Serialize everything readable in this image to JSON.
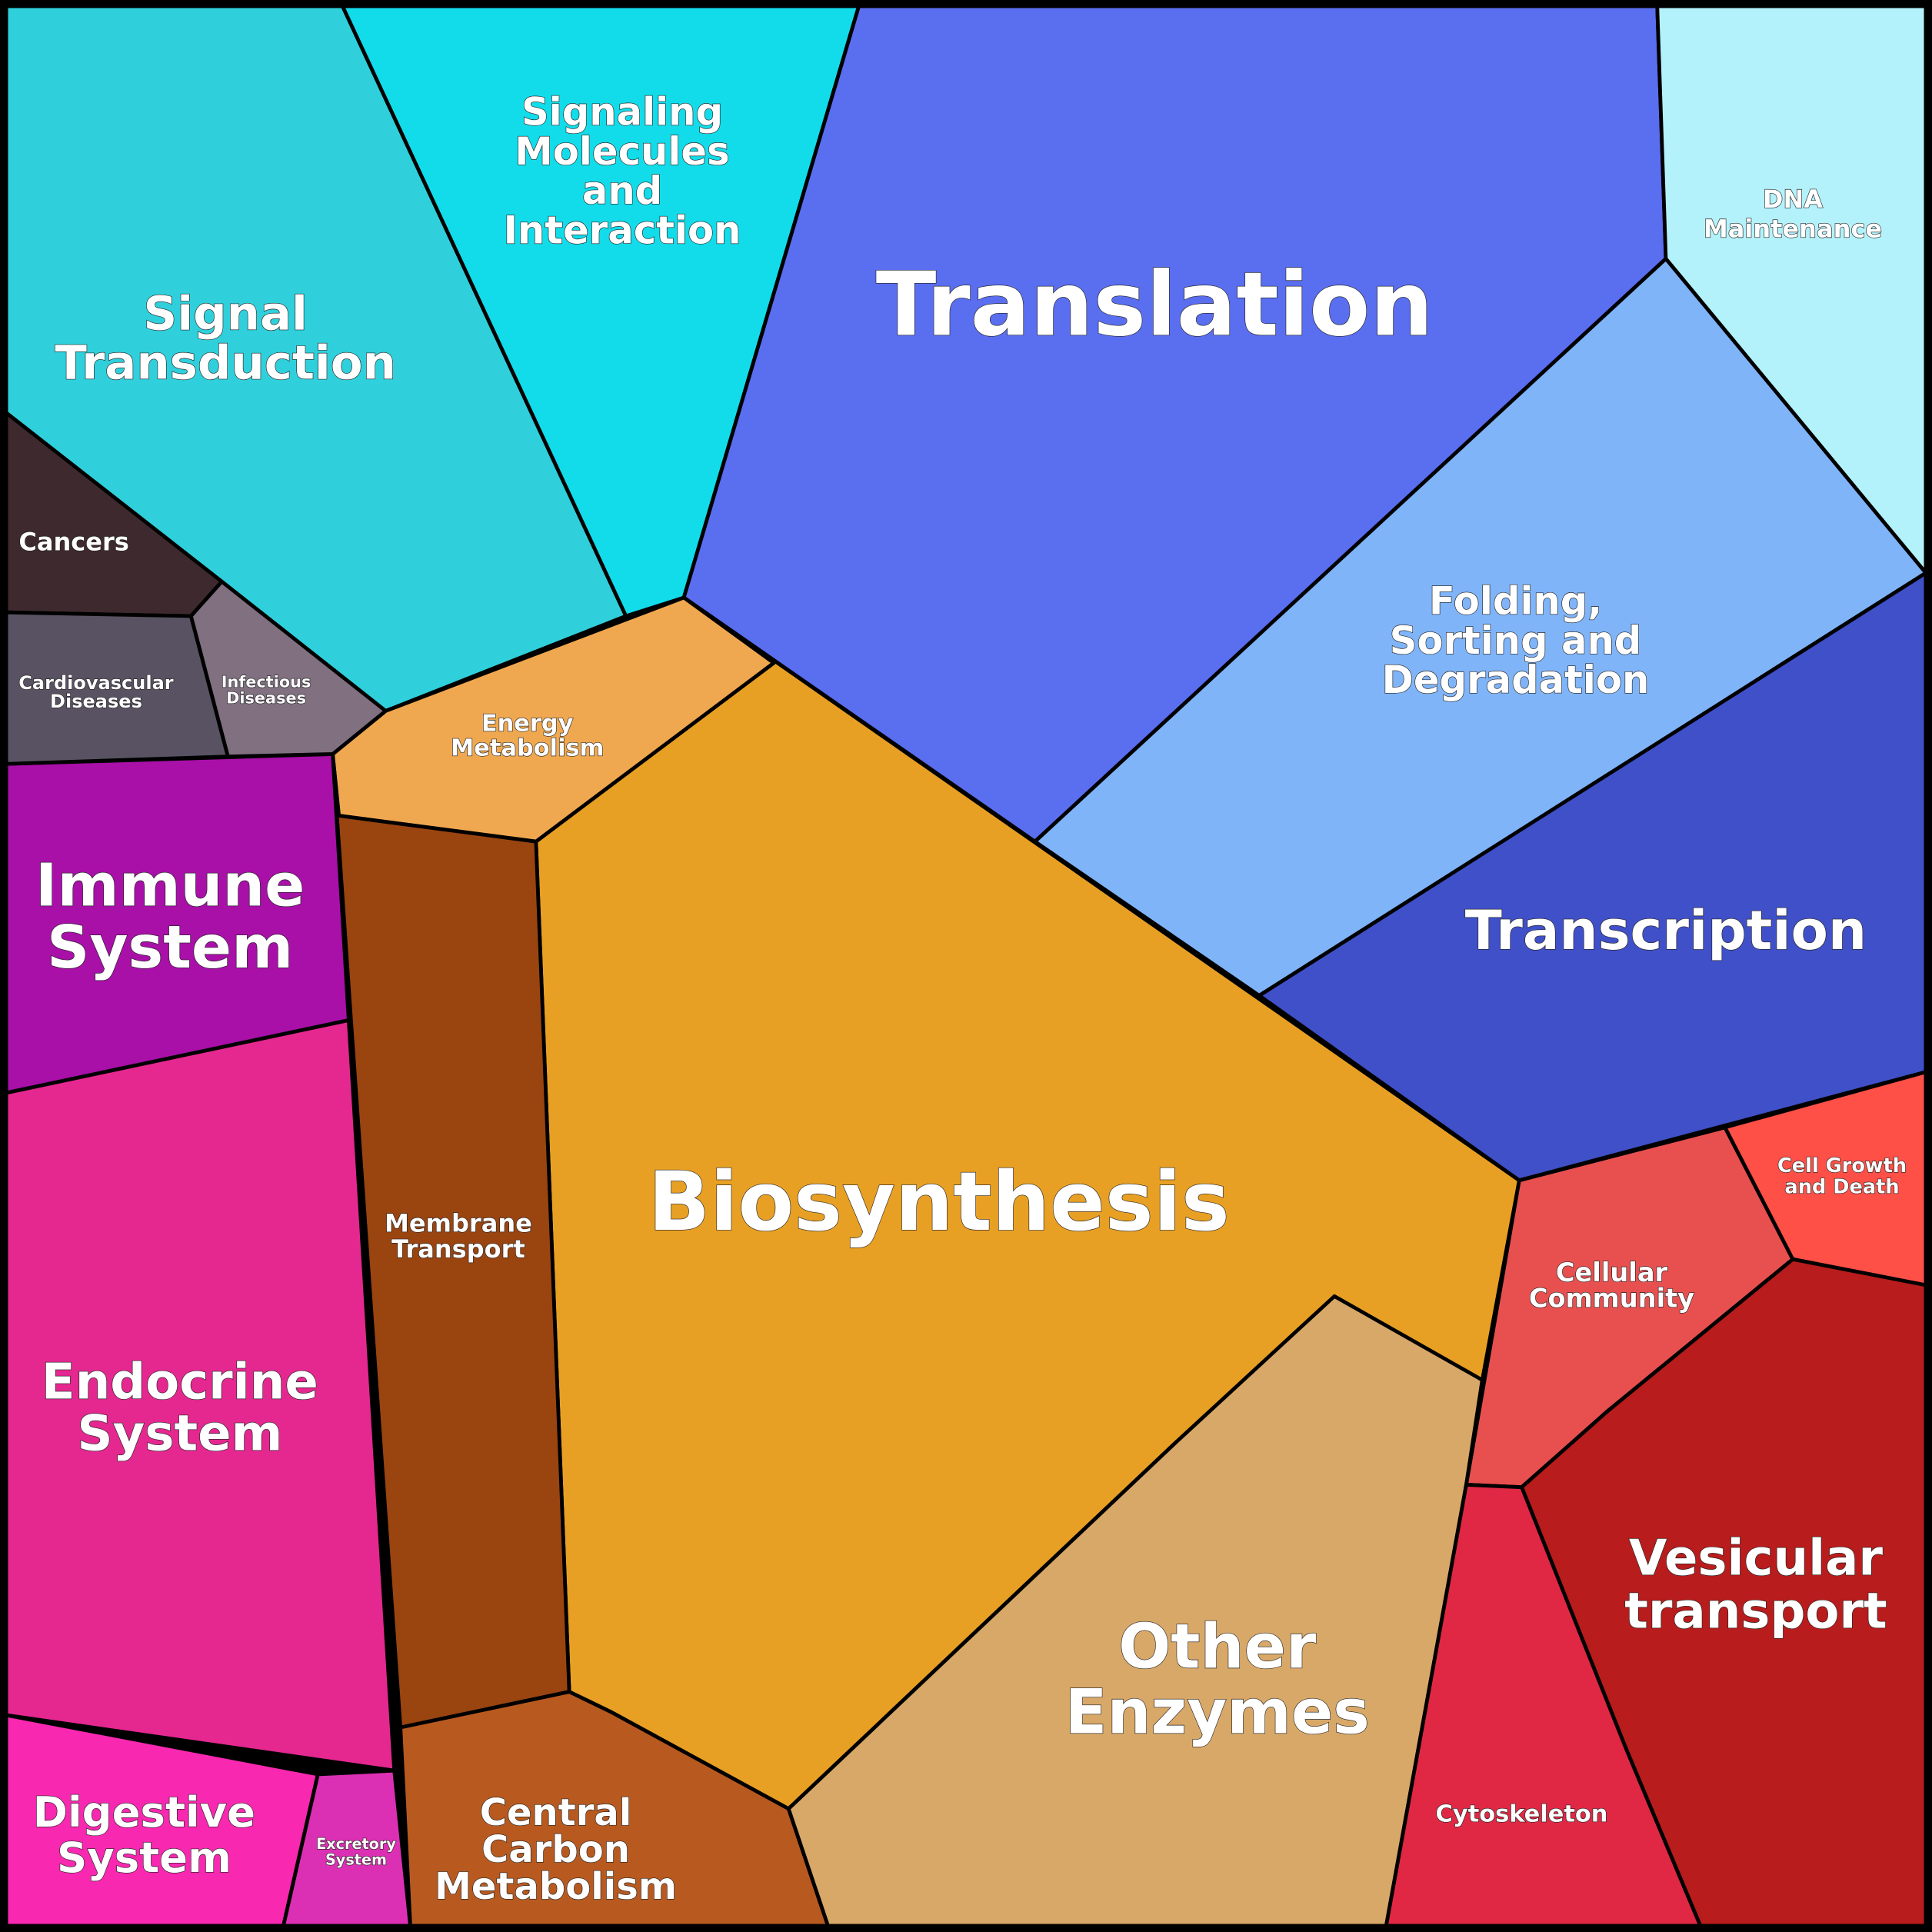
{
  "regions": [
    {
      "label": [
        "Signal",
        "Transduction"
      ]
    },
    {
      "label": [
        "Signaling",
        "Molecules",
        "and",
        "Interaction"
      ]
    },
    {
      "label": [
        "Translation"
      ]
    },
    {
      "label": [
        "DNA",
        "Maintenance"
      ]
    },
    {
      "label": [
        "Folding,",
        "Sorting and",
        "Degradation"
      ]
    },
    {
      "label": [
        "Transcription"
      ]
    },
    {
      "label": [
        "Biosynthesis"
      ]
    },
    {
      "label": [
        "Energy",
        "Metabolism"
      ]
    },
    {
      "label": [
        "Membrane",
        "Transport"
      ]
    },
    {
      "label": [
        "Central",
        "Carbon",
        "Metabolism"
      ]
    },
    {
      "label": [
        "Other",
        "Enzymes"
      ]
    },
    {
      "label": [
        "Cellular",
        "Community"
      ]
    },
    {
      "label": [
        "Cell Growth",
        "and Death"
      ]
    },
    {
      "label": [
        "Vesicular",
        "transport"
      ]
    },
    {
      "label": [
        "Cytoskeleton"
      ]
    },
    {
      "label": [
        "Immune",
        "System"
      ]
    },
    {
      "label": [
        "Endocrine",
        "System"
      ]
    },
    {
      "label": [
        "Digestive",
        "System"
      ]
    },
    {
      "label": [
        "Excretory",
        "System"
      ]
    },
    {
      "label": [
        "Cancers"
      ]
    },
    {
      "label": [
        "Cardiovascular",
        "Diseases"
      ]
    },
    {
      "label": [
        "Infectious",
        "Diseases"
      ]
    }
  ]
}
